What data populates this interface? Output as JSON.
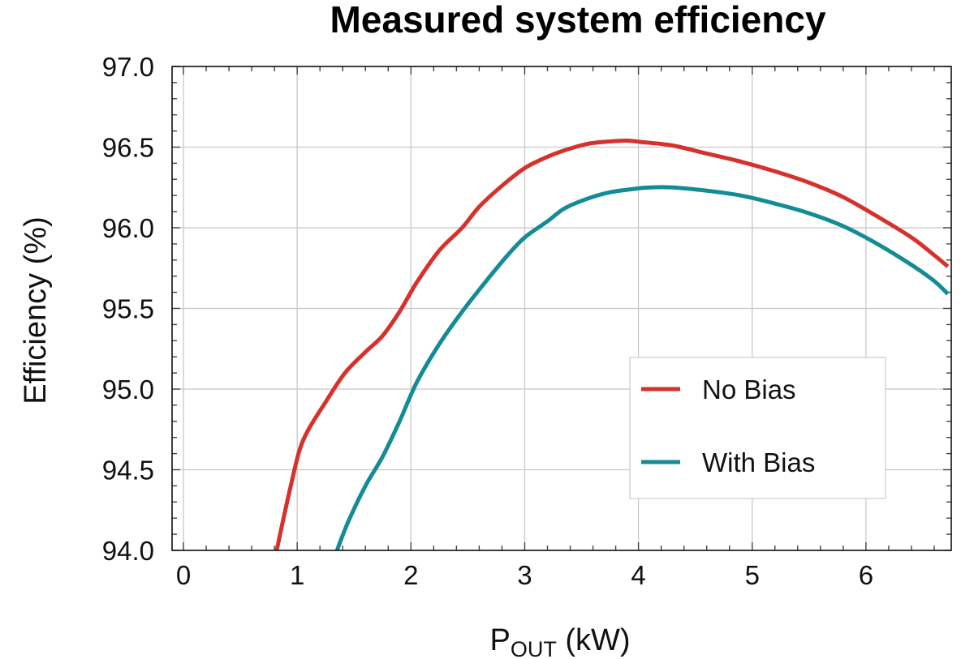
{
  "chart_data": {
    "type": "line",
    "title": "Measured system efficiency",
    "xlabel": "P",
    "xlabel_sub": "OUT",
    "xlabel_unit": " (kW)",
    "ylabel": "Efficiency (%)",
    "xlim": [
      -0.1,
      6.75
    ],
    "ylim": [
      94.0,
      97.0
    ],
    "x_ticks": [
      0,
      1,
      2,
      3,
      4,
      5,
      6
    ],
    "y_ticks": [
      94.0,
      94.5,
      95.0,
      95.5,
      96.0,
      96.5,
      97.0
    ],
    "y_tick_labels": [
      "94.0",
      "94.5",
      "95.0",
      "95.5",
      "96.0",
      "96.5",
      "97.0"
    ],
    "x_tick_labels": [
      "0",
      "1",
      "2",
      "3",
      "4",
      "5",
      "6"
    ],
    "grid": true,
    "legend_position": "bottom-right",
    "series": [
      {
        "name": "No Bias",
        "color": "#d6312b",
        "x": [
          0.82,
          0.88,
          0.95,
          1.02,
          1.1,
          1.25,
          1.42,
          1.6,
          1.75,
          1.9,
          2.05,
          2.25,
          2.45,
          2.6,
          2.8,
          3.0,
          3.2,
          3.35,
          3.55,
          3.75,
          3.9,
          4.05,
          4.3,
          4.6,
          4.9,
          5.2,
          5.5,
          5.8,
          6.1,
          6.4,
          6.6,
          6.72
        ],
        "y": [
          94.0,
          94.2,
          94.42,
          94.62,
          94.75,
          94.92,
          95.1,
          95.23,
          95.33,
          95.48,
          95.66,
          95.86,
          96.0,
          96.13,
          96.26,
          96.37,
          96.44,
          96.48,
          96.52,
          96.535,
          96.54,
          96.53,
          96.51,
          96.46,
          96.41,
          96.35,
          96.28,
          96.19,
          96.07,
          95.94,
          95.83,
          95.76
        ]
      },
      {
        "name": "With Bias",
        "color": "#138c96",
        "x": [
          1.35,
          1.45,
          1.6,
          1.75,
          1.9,
          2.05,
          2.25,
          2.45,
          2.65,
          2.85,
          3.0,
          3.2,
          3.35,
          3.55,
          3.75,
          3.95,
          4.1,
          4.3,
          4.6,
          4.9,
          5.2,
          5.5,
          5.8,
          6.1,
          6.4,
          6.6,
          6.72
        ],
        "y": [
          94.0,
          94.18,
          94.4,
          94.58,
          94.8,
          95.04,
          95.28,
          95.48,
          95.66,
          95.83,
          95.94,
          96.04,
          96.12,
          96.18,
          96.22,
          96.24,
          96.25,
          96.25,
          96.23,
          96.2,
          96.15,
          96.09,
          96.01,
          95.9,
          95.77,
          95.67,
          95.59
        ]
      }
    ]
  }
}
